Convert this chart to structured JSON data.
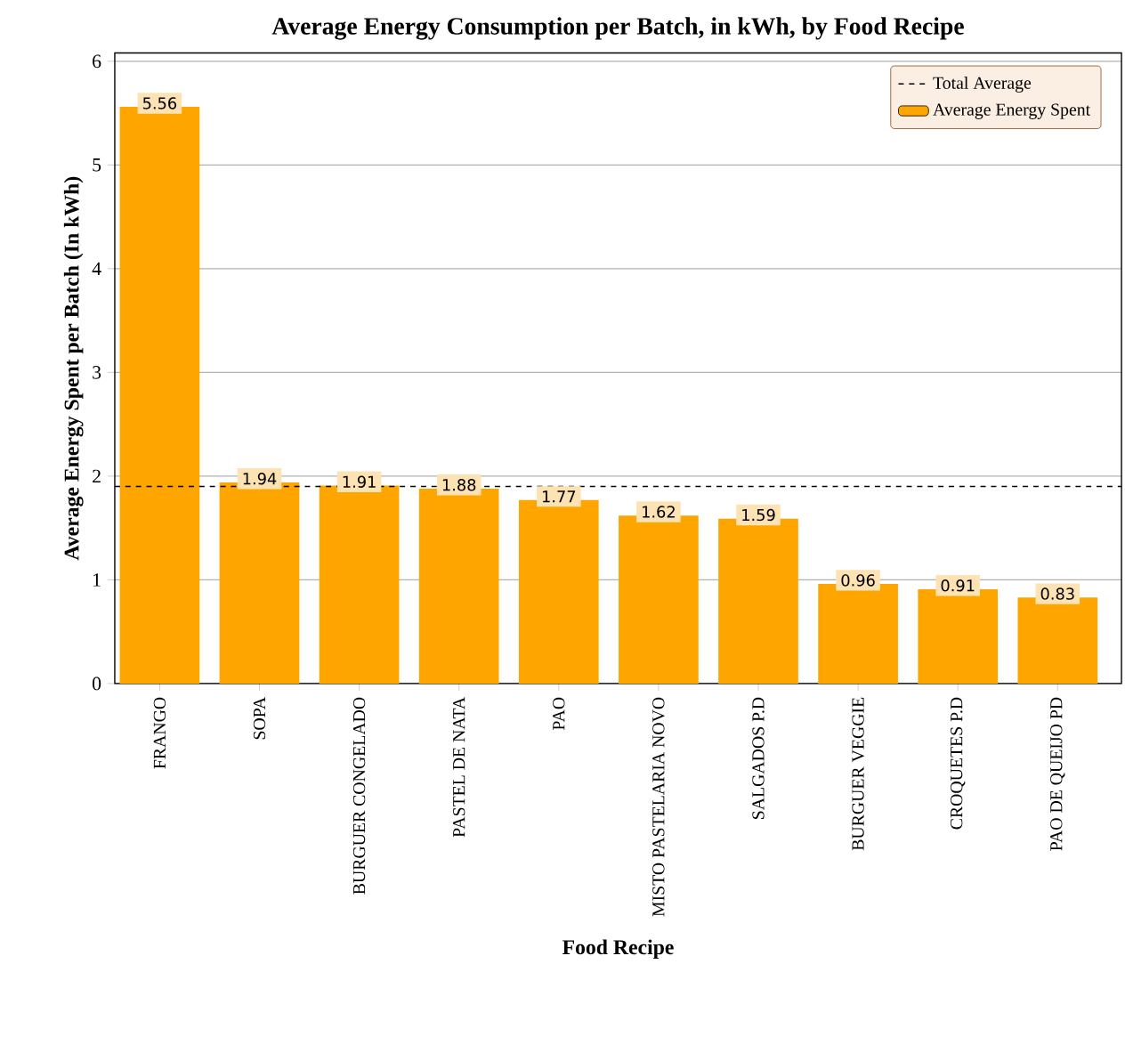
{
  "chart_data": {
    "type": "bar",
    "title": "Average Energy Consumption per Batch, in kWh, by Food Recipe",
    "xlabel": "Food Recipe",
    "ylabel": "Average Energy Spent per Batch (In kWh)",
    "categories": [
      "FRANGO",
      "SOPA",
      "BURGUER CONGELADO",
      "PASTEL DE NATA",
      "PAO",
      "MISTO PASTELARIA NOVO",
      "SALGADOS P.D",
      "BURGUER VEGGIE",
      "CROQUETES P.D",
      "PAO DE QUEIJO PD"
    ],
    "series": [
      {
        "name": "Average Energy Spent",
        "color": "#ffa500",
        "values": [
          5.56,
          1.94,
          1.91,
          1.88,
          1.77,
          1.62,
          1.59,
          0.96,
          0.91,
          0.83
        ]
      }
    ],
    "ref_lines": [
      {
        "axis": "y",
        "value": 1.9,
        "label": "Total Average",
        "color": "#000000",
        "line_style": "dashed"
      }
    ],
    "ylim": [
      0,
      6.08
    ],
    "yticks": [
      0,
      1,
      2,
      3,
      4,
      5,
      6
    ],
    "grid": "y",
    "legend": "top right",
    "data_labels": true
  }
}
